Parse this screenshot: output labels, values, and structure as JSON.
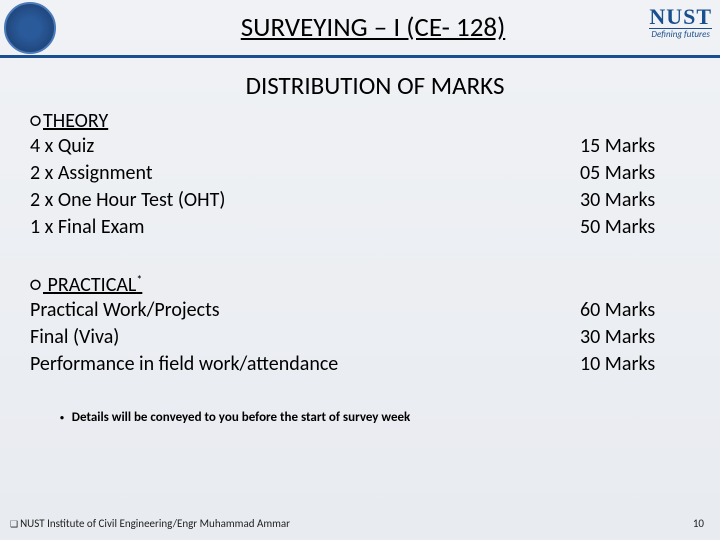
{
  "header": {
    "title": "SURVEYING – I (CE- 128)",
    "logo_right_main": "NUST",
    "logo_right_tag": "Defining futures"
  },
  "subtitle": "DISTRIBUTION OF MARKS",
  "theory": {
    "heading": "THEORY",
    "items": [
      {
        "label": "4 x Quiz",
        "marks": "15 Marks"
      },
      {
        "label": "2 x Assignment",
        "marks": "05 Marks"
      },
      {
        "label": "2 x  One Hour Test (OHT)",
        "marks": "30 Marks"
      },
      {
        "label": "1 x Final Exam",
        "marks": "50 Marks"
      }
    ]
  },
  "practical": {
    "heading": "PRACTICAL",
    "sup": "*",
    "items": [
      {
        "label": "Practical Work/Projects",
        "marks": "60 Marks"
      },
      {
        "label": "Final (Viva)",
        "marks": "30 Marks"
      },
      {
        "label": "Performance in field work/attendance",
        "marks": "10 Marks"
      }
    ]
  },
  "note": "Details will be conveyed to you before the start of survey week",
  "footer": {
    "source": "NUST Institute of Civil Engineering/Engr Muhammad Ammar",
    "page": "10"
  },
  "colors": {
    "accent": "#1a4f8f",
    "bg_top": "#f0f2f5",
    "bg_bottom": "#e8ebf0",
    "text": "#000000"
  }
}
